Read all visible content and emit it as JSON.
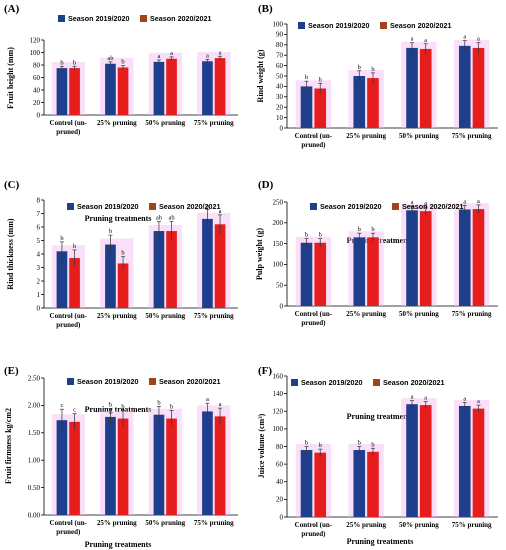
{
  "legend": {
    "series1": "Season 2019/2020",
    "series2": "Season 2020/2021"
  },
  "colors": {
    "series1": "#1f3e8c",
    "series2": "#e61d1d",
    "legend2": "#a0441a",
    "overlay": "#f2b8f0"
  },
  "chart_data": [
    {
      "panel": "(A)",
      "type": "bar",
      "xlabel": "Pruning treatments",
      "ylabel": "Fruit height (mm)",
      "ylim": [
        0,
        120
      ],
      "yticks": [
        "0",
        "20",
        "40",
        "60",
        "80",
        "100",
        "120"
      ],
      "categories": [
        "Control (un-pruned)",
        "25% pruning",
        "50% pruning",
        "75% pruning"
      ],
      "series": [
        {
          "name": "Season 2019/2020",
          "values": [
            75,
            82,
            85,
            86
          ],
          "errors": [
            3,
            3,
            3,
            3
          ],
          "letters": [
            "b",
            "ab",
            "a",
            "a"
          ]
        },
        {
          "name": "Season 2020/2021",
          "values": [
            75,
            76,
            90,
            91
          ],
          "errors": [
            3,
            3,
            3,
            3
          ],
          "letters": [
            "b",
            "b",
            "a",
            "a"
          ]
        }
      ]
    },
    {
      "panel": "(B)",
      "type": "bar",
      "xlabel": "Pruning treatments",
      "ylabel": "Rind weight (g)",
      "ylim": [
        0,
        100
      ],
      "yticks": [
        "0",
        "10",
        "20",
        "30",
        "40",
        "50",
        "60",
        "70",
        "80",
        "90",
        "100"
      ],
      "categories": [
        "Control (un-pruned)",
        "25% pruning",
        "50% pruning",
        "75% pruning"
      ],
      "series": [
        {
          "name": "Season 2019/2020",
          "values": [
            40,
            50,
            77,
            79
          ],
          "errors": [
            5,
            5,
            5,
            5
          ],
          "letters": [
            "b",
            "b",
            "a",
            "a"
          ]
        },
        {
          "name": "Season 2020/2021",
          "values": [
            38,
            48,
            76,
            77
          ],
          "errors": [
            5,
            5,
            5,
            5
          ],
          "letters": [
            "b",
            "b",
            "a",
            "a"
          ]
        }
      ]
    },
    {
      "panel": "(C)",
      "type": "bar",
      "xlabel": "Pruning treatments",
      "ylabel": "Rind thickness (mm)",
      "ylim": [
        0,
        8
      ],
      "yticks": [
        "0",
        "1",
        "2",
        "3",
        "4",
        "5",
        "6",
        "7",
        "8"
      ],
      "categories": [
        "Control (un-pruned)",
        "25% pruning",
        "50% pruning",
        "75% pruning"
      ],
      "series": [
        {
          "name": "Season 2019/2020",
          "values": [
            4.2,
            4.7,
            5.7,
            6.6
          ],
          "errors": [
            0.7,
            0.7,
            0.7,
            0.7
          ],
          "letters": [
            "b",
            "b",
            "ab",
            "a"
          ]
        },
        {
          "name": "Season 2020/2021",
          "values": [
            3.7,
            3.3,
            5.7,
            6.2
          ],
          "errors": [
            0.6,
            0.5,
            0.7,
            0.7
          ],
          "letters": [
            "b",
            "b",
            "ab",
            "a"
          ]
        }
      ]
    },
    {
      "panel": "(D)",
      "type": "bar",
      "xlabel": "Pruning treatments",
      "ylabel": "Pulp weight (g)",
      "ylim": [
        0,
        250
      ],
      "yticks": [
        "0",
        "50",
        "100",
        "150",
        "200",
        "250"
      ],
      "categories": [
        "Control (un-pruned)",
        "25% pruning",
        "50% pruning",
        "75% pruning"
      ],
      "series": [
        {
          "name": "Season 2019/2020",
          "values": [
            152,
            165,
            230,
            232
          ],
          "errors": [
            10,
            10,
            10,
            10
          ],
          "letters": [
            "b",
            "b",
            "a",
            "a"
          ]
        },
        {
          "name": "Season 2020/2021",
          "values": [
            152,
            165,
            228,
            233
          ],
          "errors": [
            10,
            10,
            10,
            10
          ],
          "letters": [
            "b",
            "b",
            "a",
            "a"
          ]
        }
      ]
    },
    {
      "panel": "(E)",
      "type": "bar",
      "xlabel": "Pruning treatments",
      "ylabel": "Fruit firmness kg/cm2",
      "ylim": [
        0,
        2.5
      ],
      "yticks": [
        "0.00",
        "0.50",
        "1.00",
        "1.50",
        "2.00",
        "2.50"
      ],
      "categories": [
        "Control (un-pruned)",
        "25% pruning",
        "50% pruning",
        "75% pruning"
      ],
      "series": [
        {
          "name": "Season 2019/2020",
          "values": [
            1.73,
            1.79,
            1.83,
            1.89
          ],
          "errors": [
            0.2,
            0.15,
            0.15,
            0.15
          ],
          "letters": [
            "c",
            "b",
            "b",
            "a"
          ]
        },
        {
          "name": "Season 2020/2021",
          "values": [
            1.7,
            1.76,
            1.76,
            1.8
          ],
          "errors": [
            0.15,
            0.15,
            0.15,
            0.15
          ],
          "letters": [
            "c",
            "b",
            "b",
            "a"
          ]
        }
      ]
    },
    {
      "panel": "(F)",
      "type": "bar",
      "xlabel": "Pruning treatments",
      "ylabel": "Juice volume (cm³)",
      "ylim": [
        0,
        160
      ],
      "yticks": [
        "0",
        "20",
        "40",
        "60",
        "80",
        "100",
        "120",
        "140",
        "160"
      ],
      "categories": [
        "Control (un-pruned)",
        "25% pruning",
        "50% pruning",
        "75% pruning"
      ],
      "series": [
        {
          "name": "Season 2019/2020",
          "values": [
            76,
            76,
            128,
            126
          ],
          "errors": [
            4,
            4,
            4,
            4
          ],
          "letters": [
            "b",
            "b",
            "a",
            "a"
          ]
        },
        {
          "name": "Season 2020/2021",
          "values": [
            73,
            74,
            127,
            123
          ],
          "errors": [
            4,
            4,
            4,
            4
          ],
          "letters": [
            "b",
            "b",
            "a",
            "a"
          ]
        }
      ]
    }
  ]
}
